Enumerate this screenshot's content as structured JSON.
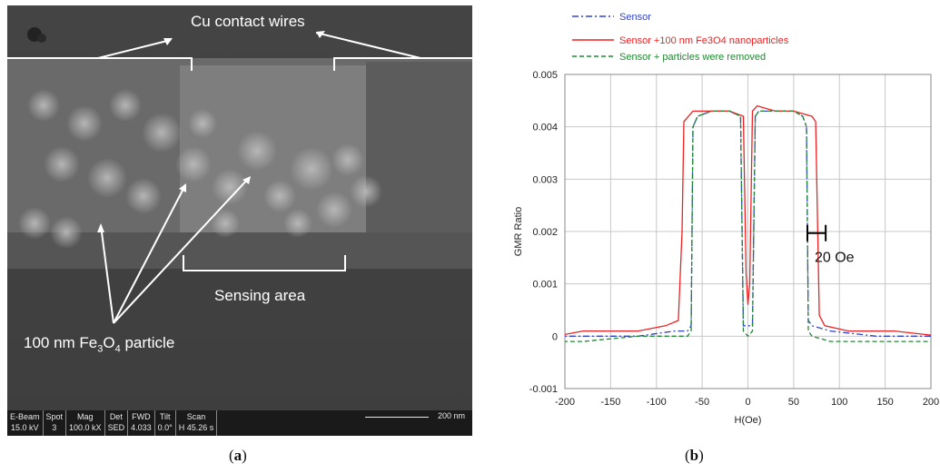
{
  "panel_a": {
    "label_top": "Cu contact wires",
    "label_sensing": "Sensing area",
    "label_particle_prefix": "100 nm Fe",
    "label_particle_sub1": "3",
    "label_particle_mid": "O",
    "label_particle_sub2": "4",
    "label_particle_suffix": " particle",
    "info_bar": {
      "cells": [
        {
          "h": "E-Beam",
          "v": "15.0 kV"
        },
        {
          "h": "Spot",
          "v": "3"
        },
        {
          "h": "Mag",
          "v": "100.0 kX"
        },
        {
          "h": "Det",
          "v": "SED"
        },
        {
          "h": "FWD",
          "v": "4.033"
        },
        {
          "h": "Tilt",
          "v": "0.0°"
        },
        {
          "h": "Scan",
          "v": "H 45.26 s"
        }
      ],
      "scale": "200 nm"
    },
    "caption_open": "(",
    "caption_letter": "a",
    "caption_close": ")"
  },
  "panel_b": {
    "caption_open": "(",
    "caption_letter": "b",
    "caption_close": ")",
    "legend": [
      {
        "name": "Sensor",
        "color": "#3344cc",
        "dash": "dashdot"
      },
      {
        "name": "Sensor +100 nm Fe3O4 nanoparticles",
        "color": "#ee2222",
        "dash": "solid"
      },
      {
        "name": "Sensor + particles were removed",
        "color": "#228833",
        "dash": "dashed"
      }
    ],
    "annotation": "20 Oe"
  },
  "chart_data": {
    "type": "line",
    "title": "",
    "xlabel": "H(Oe)",
    "ylabel": "GMR Ratio",
    "xlim": [
      -200,
      200
    ],
    "ylim": [
      -0.001,
      0.005
    ],
    "xticks": [
      -200,
      -150,
      -100,
      -50,
      0,
      50,
      100,
      150,
      200
    ],
    "yticks": [
      -0.001,
      0,
      0.001,
      0.002,
      0.003,
      0.004,
      0.005
    ],
    "ytick_labels": [
      "-0.001",
      "0",
      "0.001",
      "0.002",
      "0.003",
      "0.004",
      "0.005"
    ],
    "grid": true,
    "legend_position": "top",
    "series": [
      {
        "name": "Sensor",
        "color": "#3344cc",
        "dash": "dashdot",
        "x": [
          -210,
          -180,
          -120,
          -80,
          -66,
          -62,
          -60,
          -55,
          -40,
          -20,
          -8,
          -5,
          0,
          5,
          8,
          12,
          30,
          50,
          60,
          64,
          66,
          70,
          90,
          140,
          210
        ],
        "y": [
          0.0,
          0.0,
          0.0,
          0.0001,
          0.0001,
          0.0002,
          0.004,
          0.0042,
          0.0043,
          0.0043,
          0.0042,
          0.0002,
          0.0002,
          0.0002,
          0.0042,
          0.0043,
          0.0043,
          0.0043,
          0.0042,
          0.004,
          0.0003,
          0.0002,
          0.0001,
          0.0,
          0.0
        ]
      },
      {
        "name": "Sensor +100 nm Fe3O4 nanoparticles",
        "color": "#ee2222",
        "dash": "solid",
        "x": [
          -210,
          -180,
          -120,
          -90,
          -76,
          -72,
          -70,
          -60,
          -40,
          -20,
          -5,
          -2,
          0,
          2,
          5,
          10,
          30,
          50,
          70,
          74,
          78,
          84,
          110,
          160,
          210
        ],
        "y": [
          0.0,
          0.0001,
          0.0001,
          0.0002,
          0.0003,
          0.002,
          0.0041,
          0.0043,
          0.0043,
          0.0043,
          0.0042,
          0.0012,
          0.0006,
          0.001,
          0.0043,
          0.0044,
          0.0043,
          0.0043,
          0.0042,
          0.0041,
          0.0004,
          0.0002,
          0.0001,
          0.0001,
          0.0
        ]
      },
      {
        "name": "Sensor + particles were removed",
        "color": "#228833",
        "dash": "dashed",
        "x": [
          -210,
          -180,
          -120,
          -66,
          -62,
          -60,
          -55,
          -40,
          -20,
          -8,
          -5,
          0,
          5,
          8,
          12,
          30,
          50,
          60,
          64,
          66,
          70,
          90,
          140,
          210
        ],
        "y": [
          -0.0001,
          -0.0001,
          0.0,
          0.0,
          0.0001,
          0.004,
          0.0042,
          0.0043,
          0.0043,
          0.0042,
          0.0001,
          0.0,
          0.0001,
          0.0042,
          0.0043,
          0.0043,
          0.0043,
          0.0042,
          0.004,
          0.0001,
          0.0,
          -0.0001,
          -0.0001,
          -0.0001
        ]
      }
    ]
  }
}
